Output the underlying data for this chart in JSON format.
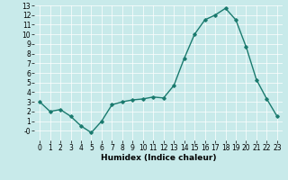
{
  "x": [
    0,
    1,
    2,
    3,
    4,
    5,
    6,
    7,
    8,
    9,
    10,
    11,
    12,
    13,
    14,
    15,
    16,
    17,
    18,
    19,
    20,
    21,
    22,
    23
  ],
  "y": [
    3.0,
    2.0,
    2.2,
    1.5,
    0.5,
    -0.2,
    1.0,
    2.7,
    3.0,
    3.2,
    3.3,
    3.5,
    3.4,
    4.7,
    7.5,
    10.0,
    11.5,
    12.0,
    12.7,
    11.5,
    8.7,
    5.3,
    3.3,
    1.5
  ],
  "line_color": "#1a7a6e",
  "marker": "D",
  "markersize": 1.8,
  "bg_color": "#c8eaea",
  "grid_color": "#ffffff",
  "xlabel": "Humidex (Indice chaleur)",
  "ylim": [
    -1,
    13
  ],
  "xlim": [
    -0.5,
    23.5
  ],
  "yticks": [
    0,
    1,
    2,
    3,
    4,
    5,
    6,
    7,
    8,
    9,
    10,
    11,
    12,
    13
  ],
  "ytick_labels": [
    "-0",
    "1",
    "2",
    "3",
    "4",
    "5",
    "6",
    "7",
    "8",
    "9",
    "10",
    "11",
    "12",
    "13"
  ],
  "xticks": [
    0,
    1,
    2,
    3,
    4,
    5,
    6,
    7,
    8,
    9,
    10,
    11,
    12,
    13,
    14,
    15,
    16,
    17,
    18,
    19,
    20,
    21,
    22,
    23
  ],
  "xlabel_fontsize": 6.5,
  "tick_fontsize": 5.5,
  "linewidth": 1.0
}
